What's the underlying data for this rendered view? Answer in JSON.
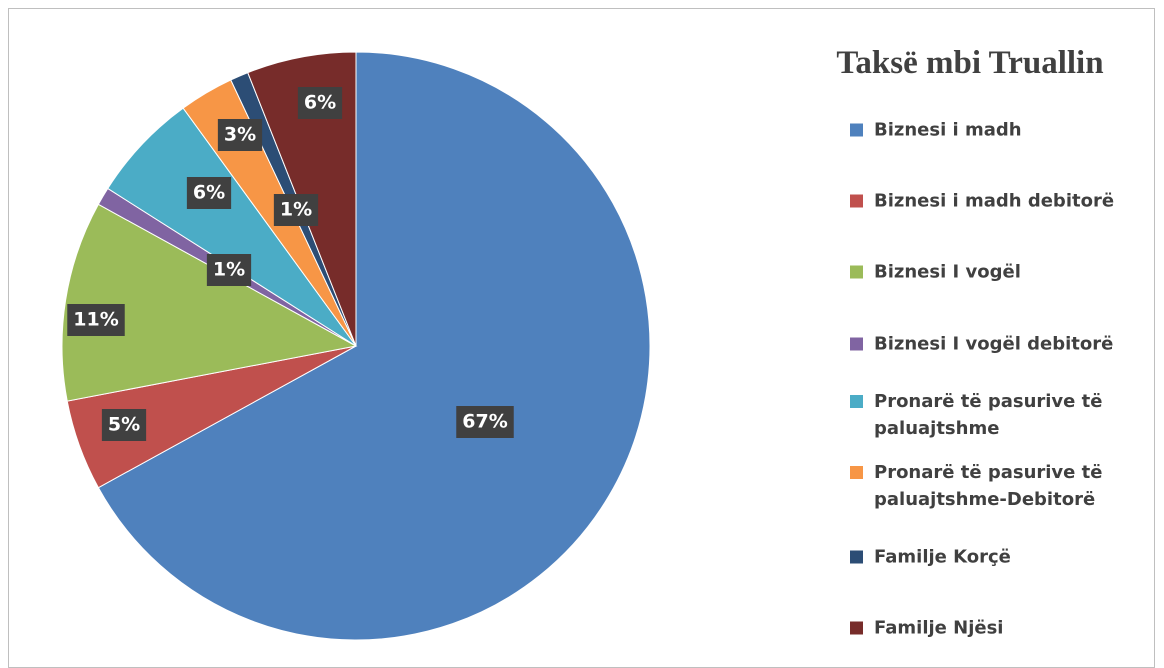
{
  "chart_data": {
    "type": "pie",
    "title": "Taksë mbi Truallin",
    "categories": [
      "Biznesi i madh",
      "Biznesi i madh debitorë",
      "Biznesi I vogël",
      "Biznesi I vogël debitorë",
      "Pronarë të pasurive të paluajtshme",
      "Pronarë të pasurive të paluajtshme-Debitorë",
      "Familje Korçë",
      "Familje Njësi"
    ],
    "values": [
      67,
      5,
      11,
      1,
      6,
      3,
      1,
      6
    ],
    "value_labels": [
      "67%",
      "5%",
      "11%",
      "1%",
      "6%",
      "3%",
      "1%",
      "6%"
    ],
    "colors": [
      "#4f81bd",
      "#c0504d",
      "#9bbb59",
      "#8064a2",
      "#4bacc6",
      "#f79646",
      "#2c4d75",
      "#772c2a"
    ],
    "legend": "right"
  }
}
